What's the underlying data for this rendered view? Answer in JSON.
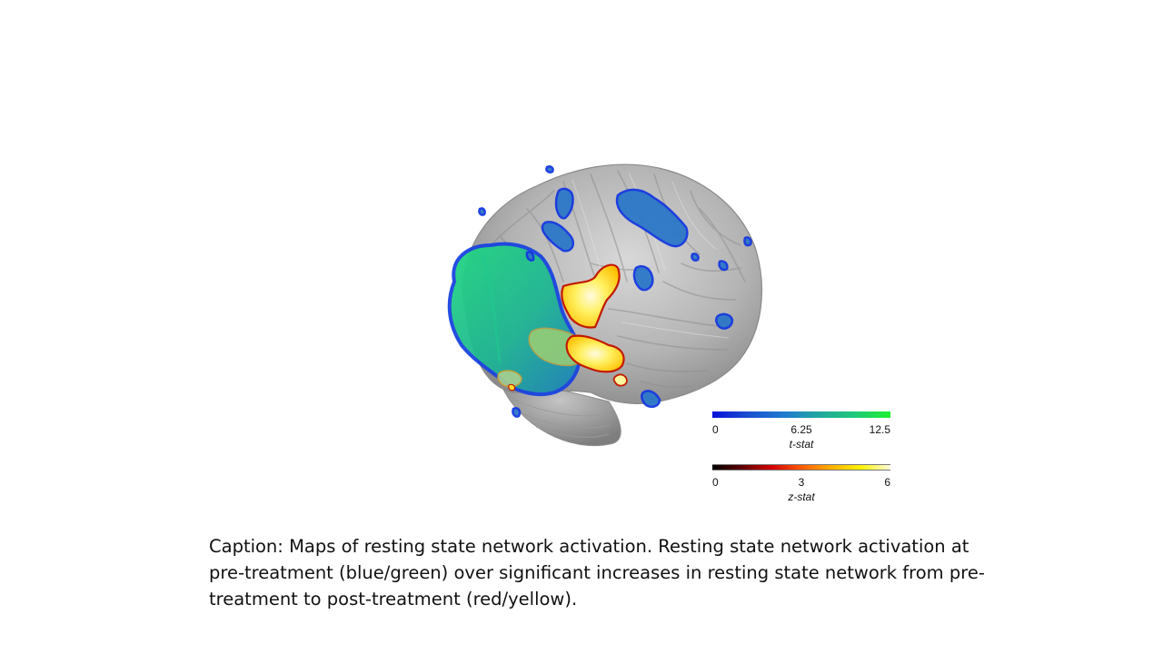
{
  "colorbars": [
    {
      "id": "t",
      "ticks": [
        "0",
        "6.25",
        "12.5"
      ],
      "label": "t-stat",
      "colors": [
        "#0a12d8",
        "#1f7ad0",
        "#21c97a",
        "#1ff030"
      ]
    },
    {
      "id": "z",
      "ticks": [
        "0",
        "3",
        "6"
      ],
      "label": "z-stat",
      "colors": [
        "#000000",
        "#d40000",
        "#ff5a00",
        "#fff200",
        "#fffce0"
      ]
    }
  ],
  "caption": "Caption: Maps of resting state network activation. Resting state network activation at pre-treatment (blue/green) over significant increases in resting state network from pre-treatment to post-treatment (red/yellow).",
  "figure": {
    "subject": "brain-render-icon",
    "overlay_colors": {
      "network": "#1bbf8a",
      "network_edge": "#1540d8",
      "increase": "#ffd400",
      "increase_edge": "#c21a00"
    }
  }
}
